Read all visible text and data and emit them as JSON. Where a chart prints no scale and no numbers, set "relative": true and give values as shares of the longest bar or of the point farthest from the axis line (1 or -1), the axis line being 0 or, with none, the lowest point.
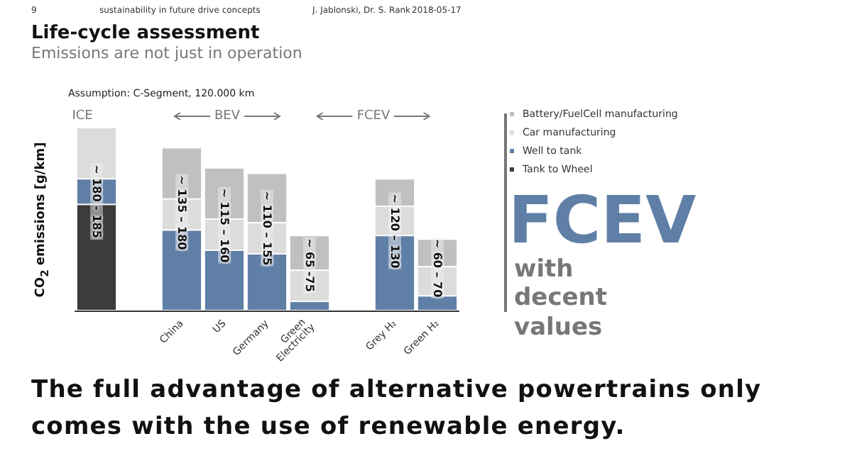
{
  "chart_data": {
    "type": "bar",
    "stacked": true,
    "relative": true,
    "title": "Life-cycle assessment",
    "subtitle": "Emissions are not just in operation",
    "ylabel": "CO$_{2}$ emissions [g/km]",
    "categories": [
      null,
      null,
      "China",
      "US",
      "Germany",
      "Green Electricity",
      null,
      "Grey H₂",
      "Green H₂"
    ],
    "series": [
      {
        "name": "Tank to Wheel",
        "color": "#3c3c3c",
        "values": [
          0.58,
          null,
          null,
          null,
          null,
          null,
          null,
          null,
          null
        ]
      },
      {
        "name": "Well to tank",
        "color": "#5f7fa6",
        "values": [
          0.14,
          null,
          0.44,
          0.33,
          0.31,
          0.05,
          null,
          0.41,
          0.08
        ]
      },
      {
        "name": "Car manufacturing",
        "color": "#dcdcdc",
        "values": [
          0.28,
          null,
          0.17,
          0.17,
          0.17,
          0.17,
          null,
          0.16,
          0.16
        ]
      },
      {
        "name": "Battery/FuelCell manufacturing",
        "color": "#c0c0c0",
        "values": [
          null,
          null,
          0.28,
          0.28,
          0.27,
          0.19,
          null,
          0.15,
          0.15
        ]
      }
    ],
    "totals": [
      "~ 180 - 185",
      null,
      "~ 135 – 180",
      "~ 115 – 160",
      "~ 110 – 155",
      "~ 65 -75",
      null,
      "~ 120 – 130",
      "~ 60 – 70"
    ],
    "legend": "right",
    "annotations": [
      "9",
      "sustainability in future drive concepts",
      "J. Jablonski, Dr. S. Rank",
      "2018-05-17",
      "Assumption: C-Segment, 120.000 km",
      "ICE",
      "BEV",
      "FCEV",
      "FCEV",
      "with decent values",
      "The full advantage of alternative powertrains only comes with the use of renewable energy."
    ]
  }
}
